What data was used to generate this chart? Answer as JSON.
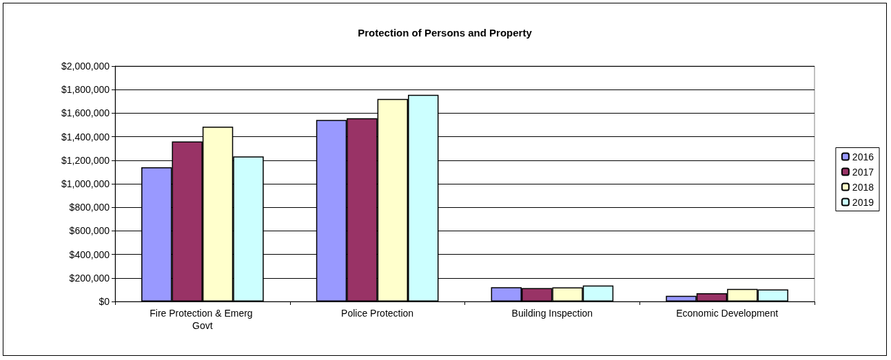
{
  "chart_data": {
    "type": "bar",
    "title": "Protection of Persons and Property",
    "categories": [
      "Fire Protection & Emerg Govt",
      "Police Protection",
      "Building Inspection",
      "Economic Development"
    ],
    "series": [
      {
        "name": "2016",
        "color": "#9999ff",
        "values": [
          1140000,
          1543000,
          122000,
          48000
        ]
      },
      {
        "name": "2017",
        "color": "#993366",
        "values": [
          1360000,
          1557000,
          114000,
          70000
        ]
      },
      {
        "name": "2018",
        "color": "#ffffcc",
        "values": [
          1485000,
          1721000,
          120000,
          107000
        ]
      },
      {
        "name": "2019",
        "color": "#ccffff",
        "values": [
          1233000,
          1756000,
          136000,
          102000
        ]
      }
    ],
    "ylim": [
      0,
      2000000
    ],
    "yticks": [
      {
        "value": 0,
        "label": "$0"
      },
      {
        "value": 200000,
        "label": "$200,000"
      },
      {
        "value": 400000,
        "label": "$400,000"
      },
      {
        "value": 600000,
        "label": "$600,000"
      },
      {
        "value": 800000,
        "label": "$800,000"
      },
      {
        "value": 1000000,
        "label": "$1,000,000"
      },
      {
        "value": 1200000,
        "label": "$1,200,000"
      },
      {
        "value": 1400000,
        "label": "$1,400,000"
      },
      {
        "value": 1600000,
        "label": "$1,600,000"
      },
      {
        "value": 1800000,
        "label": "$1,800,000"
      },
      {
        "value": 2000000,
        "label": "$2,000,000"
      }
    ],
    "grid": "y",
    "legend": "right"
  }
}
